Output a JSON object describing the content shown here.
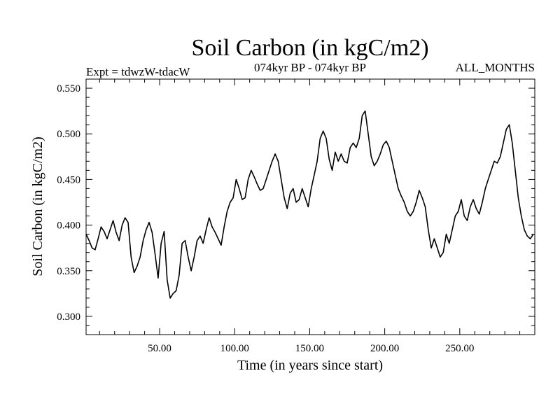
{
  "chart_data": {
    "type": "line",
    "title": "Soil Carbon (in kgC/m2)",
    "subtitle_left": "Expt = tdwzW-tdacW",
    "subtitle_center": "074kyr BP - 074kyr BP",
    "subtitle_right": "ALL_MONTHS",
    "xlabel": "Time (in years since start)",
    "ylabel": "Soil Carbon (in kgC/m2)",
    "xlim": [
      1,
      300
    ],
    "ylim": [
      0.28,
      0.56
    ],
    "xticks": [
      50,
      100,
      150,
      200,
      250
    ],
    "xtick_labels": [
      "50.00",
      "100.00",
      "150.00",
      "200.00",
      "250.00"
    ],
    "yticks": [
      0.3,
      0.35,
      0.4,
      0.45,
      0.5,
      0.55
    ],
    "ytick_labels": [
      "0.300",
      "0.350",
      "0.400",
      "0.450",
      "0.500",
      "0.550"
    ],
    "grid": false,
    "series": [
      {
        "color": "#000000",
        "x": [
          1,
          3,
          5,
          7,
          9,
          11,
          13,
          15,
          17,
          19,
          21,
          23,
          25,
          27,
          29,
          31,
          33,
          35,
          37,
          39,
          41,
          43,
          45,
          47,
          49,
          51,
          53,
          55,
          57,
          59,
          61,
          63,
          65,
          67,
          69,
          71,
          73,
          75,
          77,
          79,
          81,
          83,
          85,
          87,
          89,
          91,
          93,
          95,
          97,
          99,
          101,
          103,
          105,
          107,
          109,
          111,
          113,
          115,
          117,
          119,
          121,
          123,
          125,
          127,
          129,
          131,
          133,
          135,
          137,
          139,
          141,
          143,
          145,
          147,
          149,
          151,
          153,
          155,
          157,
          159,
          161,
          163,
          165,
          167,
          169,
          171,
          173,
          175,
          177,
          179,
          181,
          183,
          185,
          187,
          189,
          191,
          193,
          195,
          197,
          199,
          201,
          203,
          205,
          207,
          209,
          211,
          213,
          215,
          217,
          219,
          221,
          223,
          225,
          227,
          229,
          231,
          233,
          235,
          237,
          239,
          241,
          243,
          245,
          247,
          249,
          251,
          253,
          255,
          257,
          259,
          261,
          263,
          265,
          267,
          269,
          271,
          273,
          275,
          277,
          279,
          281,
          283,
          285,
          287,
          289,
          291,
          293,
          295,
          297,
          299
        ],
        "y": [
          0.39,
          0.383,
          0.375,
          0.373,
          0.385,
          0.398,
          0.393,
          0.385,
          0.395,
          0.405,
          0.392,
          0.383,
          0.4,
          0.408,
          0.403,
          0.365,
          0.348,
          0.355,
          0.365,
          0.383,
          0.395,
          0.403,
          0.392,
          0.368,
          0.342,
          0.38,
          0.393,
          0.34,
          0.32,
          0.325,
          0.328,
          0.345,
          0.38,
          0.383,
          0.365,
          0.35,
          0.365,
          0.383,
          0.388,
          0.38,
          0.395,
          0.408,
          0.398,
          0.392,
          0.385,
          0.378,
          0.398,
          0.415,
          0.425,
          0.43,
          0.45,
          0.44,
          0.428,
          0.43,
          0.45,
          0.46,
          0.453,
          0.445,
          0.438,
          0.44,
          0.45,
          0.46,
          0.47,
          0.478,
          0.47,
          0.45,
          0.43,
          0.418,
          0.435,
          0.44,
          0.425,
          0.428,
          0.44,
          0.43,
          0.42,
          0.44,
          0.455,
          0.47,
          0.495,
          0.503,
          0.495,
          0.472,
          0.46,
          0.48,
          0.47,
          0.478,
          0.47,
          0.468,
          0.485,
          0.49,
          0.485,
          0.495,
          0.52,
          0.525,
          0.5,
          0.475,
          0.465,
          0.47,
          0.478,
          0.488,
          0.492,
          0.485,
          0.47,
          0.455,
          0.44,
          0.432,
          0.425,
          0.415,
          0.41,
          0.415,
          0.425,
          0.438,
          0.43,
          0.42,
          0.395,
          0.375,
          0.385,
          0.375,
          0.365,
          0.37,
          0.39,
          0.38,
          0.395,
          0.41,
          0.415,
          0.428,
          0.41,
          0.405,
          0.42,
          0.428,
          0.418,
          0.412,
          0.425,
          0.44,
          0.45,
          0.46,
          0.47,
          0.468,
          0.475,
          0.49,
          0.505,
          0.51,
          0.49,
          0.46,
          0.43,
          0.41,
          0.395,
          0.388,
          0.385,
          0.39
        ]
      }
    ]
  }
}
